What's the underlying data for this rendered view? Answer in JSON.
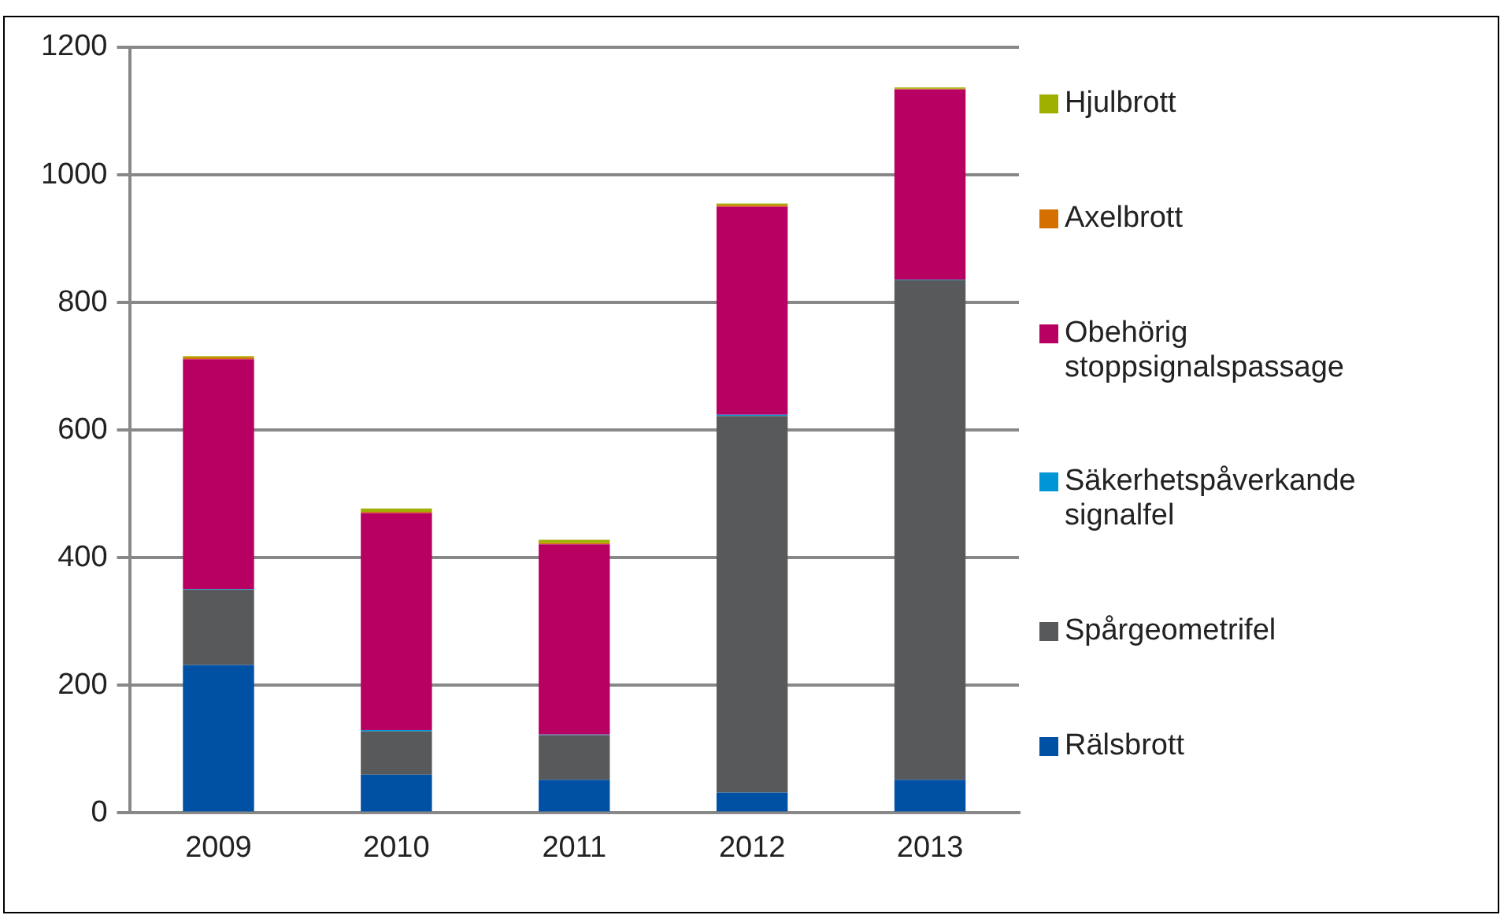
{
  "chart_data": {
    "type": "bar",
    "stacked": true,
    "categories": [
      "2009",
      "2010",
      "2011",
      "2012",
      "2013"
    ],
    "series": [
      {
        "name": "Rälsbrott",
        "color": "#0050a4",
        "values": [
          232,
          60,
          52,
          32,
          52
        ]
      },
      {
        "name": "Spårgeometrifel",
        "color": "#58595b",
        "values": [
          118,
          68,
          70,
          590,
          783
        ]
      },
      {
        "name": "Säkerhetspåverkande signalfel",
        "color": "#0096d6",
        "values": [
          1,
          2,
          1,
          2,
          1
        ]
      },
      {
        "name": "Obehörig stoppsignalspassage",
        "color": "#b70062",
        "values": [
          360,
          340,
          298,
          326,
          298
        ]
      },
      {
        "name": "Axelbrott",
        "color": "#d46f00",
        "values": [
          3,
          2,
          2,
          3,
          1
        ]
      },
      {
        "name": "Hjulbrott",
        "color": "#a0b000",
        "values": [
          2,
          5,
          5,
          2,
          2
        ]
      }
    ],
    "ylim": [
      0,
      1200
    ],
    "yticks": [
      0,
      200,
      400,
      600,
      800,
      1000,
      1200
    ],
    "grid": "y",
    "legend": "right"
  }
}
